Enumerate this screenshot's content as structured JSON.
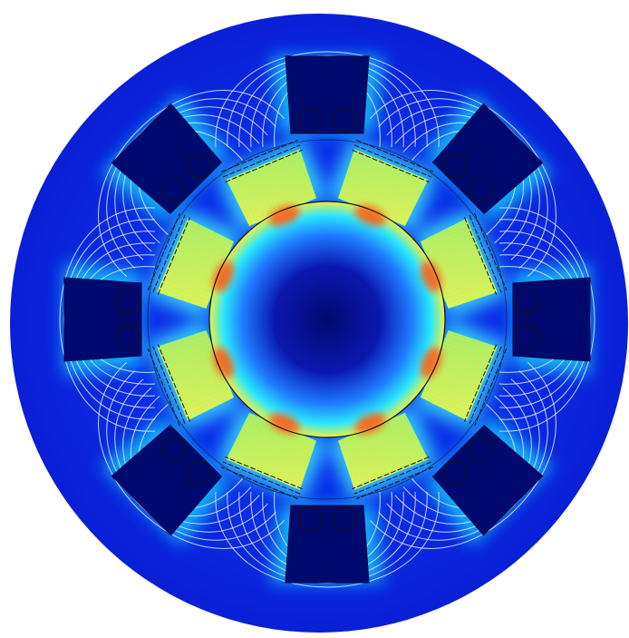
{
  "figure": {
    "background": "#ffffff",
    "colors": {
      "field_low": "#0a1fd6",
      "field_deep": "#000a6e",
      "field_mid": "#14c8ff",
      "field_high": "#b6f07a",
      "field_peak": "#ff5a14",
      "field_line": "#e6ecff",
      "outline": "#101020"
    },
    "counts": {
      "stator_slots": 8,
      "teeth": 8,
      "conductors_per_slot": 2
    },
    "icons": [
      "field-lines",
      "coil-slot",
      "conductor"
    ]
  }
}
